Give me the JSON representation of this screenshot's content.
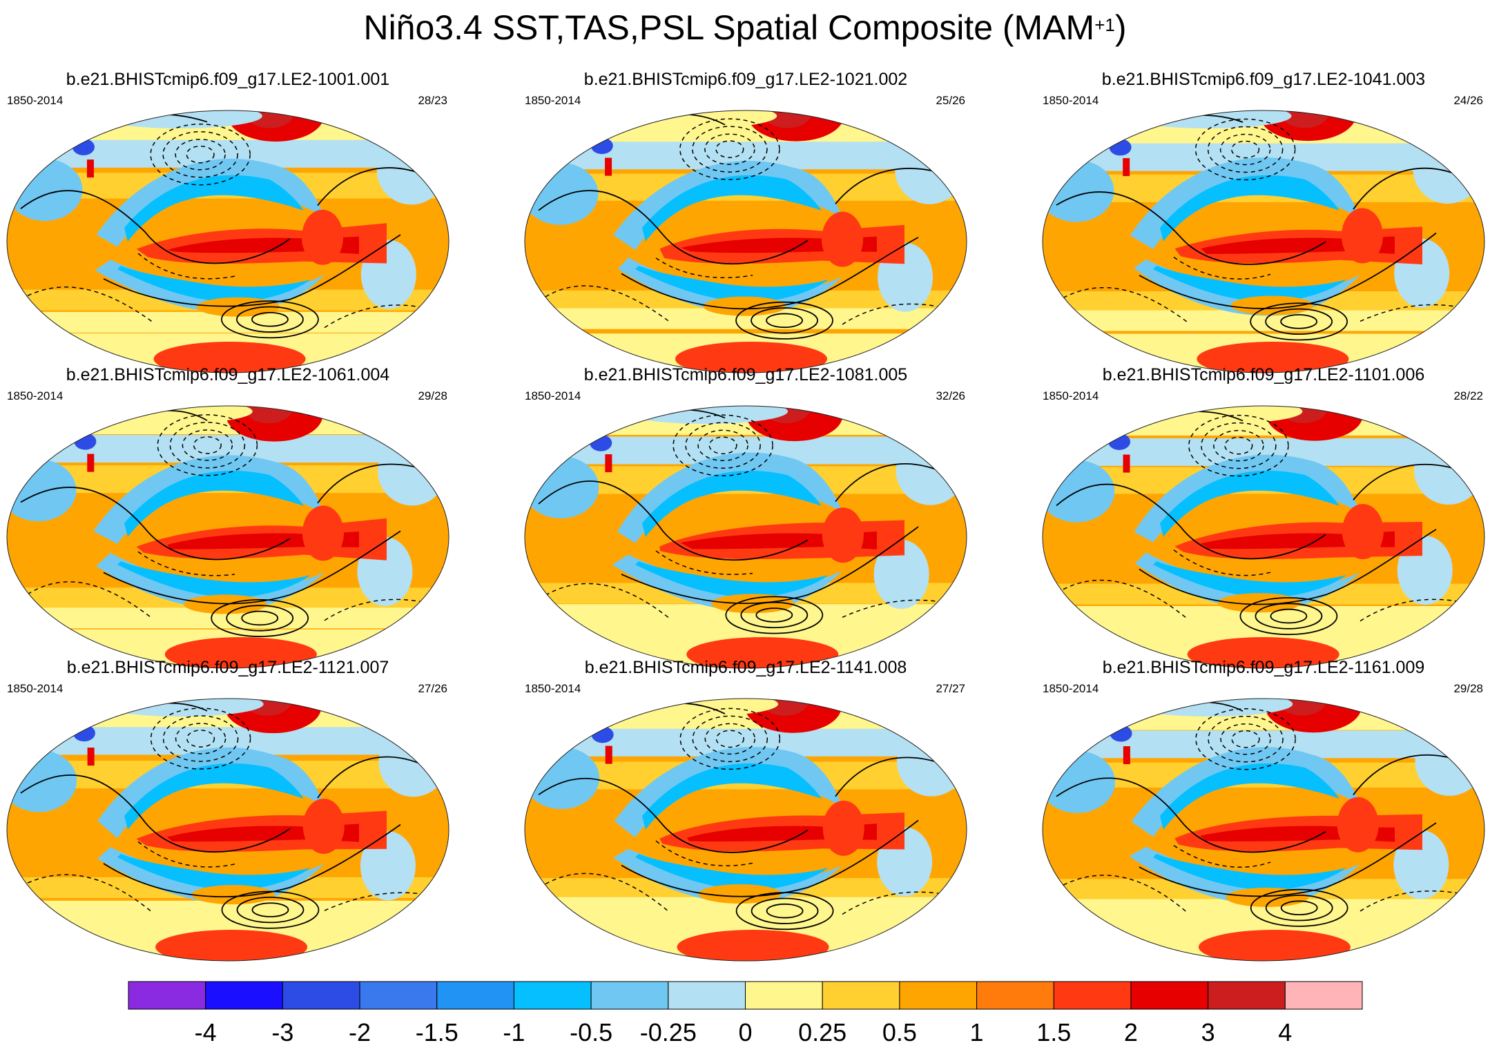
{
  "title": {
    "text": "Niño3.4 SST,TAS,PSL Spatial Composite (MAM",
    "superscript": "+1",
    "closing": ")"
  },
  "chart_data": {
    "type": "heatmap",
    "description_kind": "spatial composite maps (filled anomaly field with PSL contour overlay)",
    "panels": [
      {
        "title": "b.e21.BHISTcmip6.f09_g17.LE2-1001.001",
        "years": "1850-2014",
        "ratio": "28/23"
      },
      {
        "title": "b.e21.BHISTcmip6.f09_g17.LE2-1021.002",
        "years": "1850-2014",
        "ratio": "25/26"
      },
      {
        "title": "b.e21.BHISTcmip6.f09_g17.LE2-1041.003",
        "years": "1850-2014",
        "ratio": "24/26"
      },
      {
        "title": "b.e21.BHISTcmip6.f09_g17.LE2-1061.004",
        "years": "1850-2014",
        "ratio": "29/28"
      },
      {
        "title": "b.e21.BHISTcmip6.f09_g17.LE2-1081.005",
        "years": "1850-2014",
        "ratio": "32/26"
      },
      {
        "title": "b.e21.BHISTcmip6.f09_g17.LE2-1101.006",
        "years": "1850-2014",
        "ratio": "28/22"
      },
      {
        "title": "b.e21.BHISTcmip6.f09_g17.LE2-1121.007",
        "years": "1850-2014",
        "ratio": "27/26"
      },
      {
        "title": "b.e21.BHISTcmip6.f09_g17.LE2-1141.008",
        "years": "1850-2014",
        "ratio": "27/27"
      },
      {
        "title": "b.e21.BHISTcmip6.f09_g17.LE2-1161.009",
        "years": "1850-2014",
        "ratio": "29/28"
      }
    ],
    "colorbar": {
      "levels": [
        "-4",
        "-3",
        "-2",
        "-1.5",
        "-1",
        "-0.5",
        "-0.25",
        "0",
        "0.25",
        "0.5",
        "1",
        "1.5",
        "2",
        "3",
        "4"
      ],
      "colors": [
        "#8a2be2",
        "#1a0fff",
        "#2d4ce6",
        "#3a78ee",
        "#2193f5",
        "#06bfff",
        "#70c8f2",
        "#b3e0f2",
        "#fff68e",
        "#ffd030",
        "#ffa502",
        "#ff7b0b",
        "#ff3a12",
        "#e60000",
        "#cc1e1e",
        "#ffb5b8"
      ]
    }
  }
}
